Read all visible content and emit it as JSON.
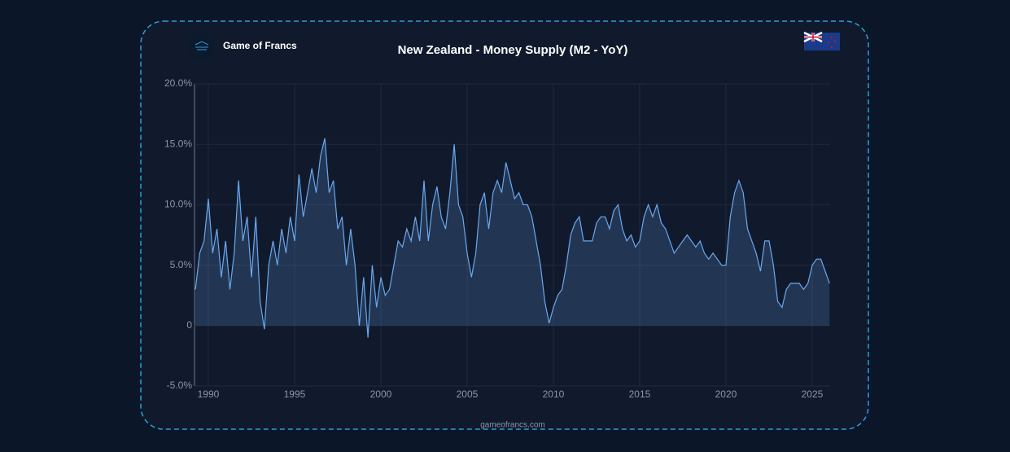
{
  "brand": "Game of Francs",
  "footer": "gameofrancs.com",
  "chart_data": {
    "type": "area",
    "title": "New Zealand - Money Supply (M2 - YoY)",
    "x": [
      1989.25,
      1989.5,
      1989.75,
      1990,
      1990.25,
      1990.5,
      1990.75,
      1991,
      1991.25,
      1991.5,
      1991.75,
      1992,
      1992.25,
      1992.5,
      1992.75,
      1993,
      1993.25,
      1993.5,
      1993.75,
      1994,
      1994.25,
      1994.5,
      1994.75,
      1995,
      1995.25,
      1995.5,
      1995.75,
      1996,
      1996.25,
      1996.5,
      1996.75,
      1997,
      1997.25,
      1997.5,
      1997.75,
      1998,
      1998.25,
      1998.5,
      1998.75,
      1999,
      1999.25,
      1999.5,
      1999.75,
      2000,
      2000.25,
      2000.5,
      2000.75,
      2001,
      2001.25,
      2001.5,
      2001.75,
      2002,
      2002.25,
      2002.5,
      2002.75,
      2003,
      2003.25,
      2003.5,
      2003.75,
      2004,
      2004.25,
      2004.5,
      2004.75,
      2005,
      2005.25,
      2005.5,
      2005.75,
      2006,
      2006.25,
      2006.5,
      2006.75,
      2007,
      2007.25,
      2007.5,
      2007.75,
      2008,
      2008.25,
      2008.5,
      2008.75,
      2009,
      2009.25,
      2009.5,
      2009.75,
      2010,
      2010.25,
      2010.5,
      2010.75,
      2011,
      2011.25,
      2011.5,
      2011.75,
      2012,
      2012.25,
      2012.5,
      2012.75,
      2013,
      2013.25,
      2013.5,
      2013.75,
      2014,
      2014.25,
      2014.5,
      2014.75,
      2015,
      2015.25,
      2015.5,
      2015.75,
      2016,
      2016.25,
      2016.5,
      2016.75,
      2017,
      2017.25,
      2017.5,
      2017.75,
      2018,
      2018.25,
      2018.5,
      2018.75,
      2019,
      2019.25,
      2019.5,
      2019.75,
      2020,
      2020.25,
      2020.5,
      2020.75,
      2021,
      2021.25,
      2021.5,
      2021.75,
      2022,
      2022.25,
      2022.5,
      2022.75,
      2023,
      2023.25,
      2023.5,
      2023.75,
      2024,
      2024.25,
      2024.5,
      2024.75,
      2025,
      2025.25,
      2025.5,
      2025.75,
      2026
    ],
    "values": [
      3,
      6,
      7,
      10.5,
      6,
      8,
      4,
      7,
      3,
      6,
      12,
      7,
      9,
      4,
      9,
      2,
      -0.3,
      5,
      7,
      5,
      8,
      6,
      9,
      7,
      12.5,
      9,
      11,
      13,
      11,
      14,
      15.5,
      11,
      12,
      8,
      9,
      5,
      8,
      5,
      0,
      4,
      -1,
      5,
      1.5,
      4,
      2.5,
      3,
      5,
      7,
      6.5,
      8,
      7,
      9,
      7,
      12,
      7,
      10,
      11.5,
      9,
      8,
      11,
      15,
      10,
      9,
      6,
      4,
      6,
      10,
      11,
      8,
      11,
      12,
      11,
      13.5,
      12,
      10.5,
      11,
      10,
      10,
      9,
      7,
      5,
      2,
      0.2,
      1.5,
      2.5,
      3,
      5,
      7.5,
      8.5,
      9,
      7,
      7,
      7,
      8.5,
      9,
      9,
      8,
      9.5,
      10,
      8,
      7,
      7.5,
      6.5,
      7,
      9,
      10,
      9,
      10,
      8.5,
      8,
      7,
      6,
      6.5,
      7,
      7.5,
      7,
      6.5,
      7,
      6,
      5.5,
      6,
      5.5,
      5,
      5,
      9,
      11,
      12,
      11,
      8,
      7,
      6,
      4.5,
      7,
      7,
      5,
      2,
      1.5,
      3,
      3.5,
      3.5,
      3.5,
      3,
      3.5,
      5,
      5.5,
      5.5,
      4.5,
      3.5
    ],
    "color": "#6aa8f0",
    "xlim": [
      1989.2,
      2026.04
    ],
    "xticks": [
      1990,
      1995,
      2000,
      2005,
      2010,
      2015,
      2020,
      2025
    ],
    "ylim": [
      -5,
      20
    ],
    "yticks": [
      {
        "value": -5,
        "label": "-5.0%"
      },
      0,
      {
        "value": 5,
        "label": "5.0%"
      },
      {
        "value": 10,
        "label": "10.0%"
      },
      {
        "value": 15,
        "label": "15.0%"
      },
      {
        "value": 20,
        "label": "20.0%"
      }
    ],
    "grid": true
  }
}
